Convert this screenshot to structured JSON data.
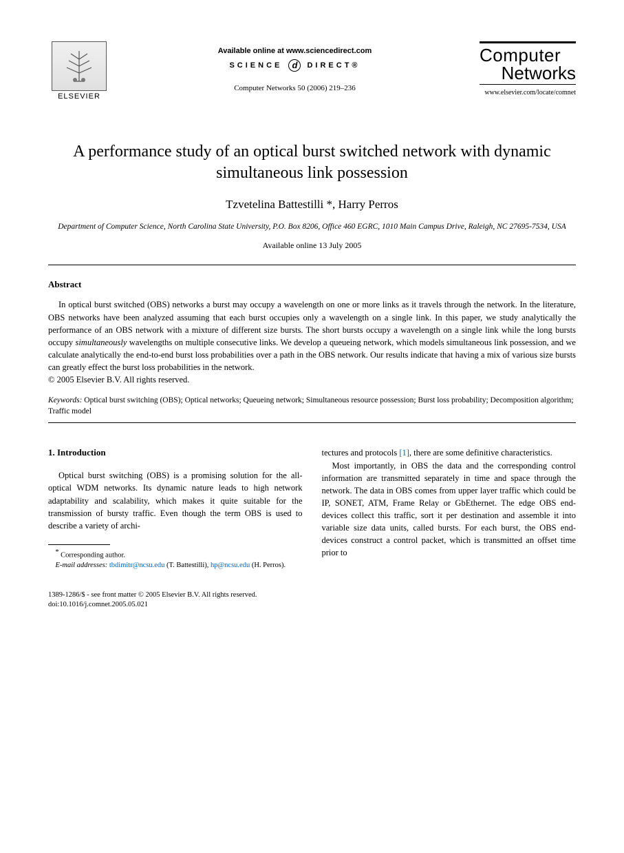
{
  "header": {
    "elsevier_label": "ELSEVIER",
    "available_online": "Available online at www.sciencedirect.com",
    "science_direct_left": "SCIENCE",
    "science_direct_right": "DIRECT®",
    "journal_reference": "Computer Networks 50 (2006) 219–236",
    "journal_logo_line1_light": "om",
    "journal_logo_line1_caps": "C",
    "journal_logo_line1_rest": "puter",
    "journal_logo_line2_caps": "N",
    "journal_logo_line2_light": "et",
    "journal_logo_line2_rest": "works",
    "journal_url": "www.elsevier.com/locate/comnet"
  },
  "title": "A performance study of an optical burst switched network with dynamic simultaneous link possession",
  "authors": "Tzvetelina Battestilli *, Harry Perros",
  "affiliation": "Department of Computer Science, North Carolina State University, P.O. Box 8206, Office 460 EGRC, 1010 Main Campus Drive, Raleigh, NC 27695-7534, USA",
  "available_date": "Available online 13 July 2005",
  "abstract": {
    "heading": "Abstract",
    "body": "In optical burst switched (OBS) networks a burst may occupy a wavelength on one or more links as it travels through the network. In the literature, OBS networks have been analyzed assuming that each burst occupies only a wavelength on a single link. In this paper, we study analytically the performance of an OBS network with a mixture of different size bursts. The short bursts occupy a wavelength on a single link while the long bursts occupy simultaneously wavelengths on multiple consecutive links. We develop a queueing network, which models simultaneous link possession, and we calculate analytically the end-to-end burst loss probabilities over a path in the OBS network. Our results indicate that having a mix of various size bursts can greatly effect the burst loss probabilities in the network.",
    "copyright": "© 2005 Elsevier B.V. All rights reserved."
  },
  "keywords": {
    "label": "Keywords:",
    "text": "Optical burst switching (OBS); Optical networks; Queueing network; Simultaneous resource possession; Burst loss probability; Decomposition algorithm; Traffic model"
  },
  "section1": {
    "heading": "1. Introduction",
    "col1_p1": "Optical burst switching (OBS) is a promising solution for the all-optical WDM networks. Its dynamic nature leads to high network adaptability and scalability, which makes it quite suitable for the transmission of bursty traffic. Even though the term OBS is used to describe a variety of archi-",
    "col2_p1_pre": "tectures and protocols ",
    "col2_p1_ref": "[1]",
    "col2_p1_post": ", there are some definitive characteristics.",
    "col2_p2": "Most importantly, in OBS the data and the corresponding control information are transmitted separately in time and space through the network. The data in OBS comes from upper layer traffic which could be IP, SONET, ATM, Frame Relay or GbEthernet. The edge OBS end-devices collect this traffic, sort it per destination and assemble it into variable size data units, called bursts. For each burst, the OBS end-devices construct a control packet, which is transmitted an offset time prior to"
  },
  "footnotes": {
    "corresponding": "Corresponding author.",
    "email_label": "E-mail addresses:",
    "email1": "tbdimitr@ncsu.edu",
    "email1_name": "(T. Battestilli),",
    "email2": "hp@ncsu.edu",
    "email2_name": "(H. Perros)."
  },
  "footer": {
    "line1": "1389-1286/$ - see front matter © 2005 Elsevier B.V. All rights reserved.",
    "line2": "doi:10.1016/j.comnet.2005.05.021"
  }
}
